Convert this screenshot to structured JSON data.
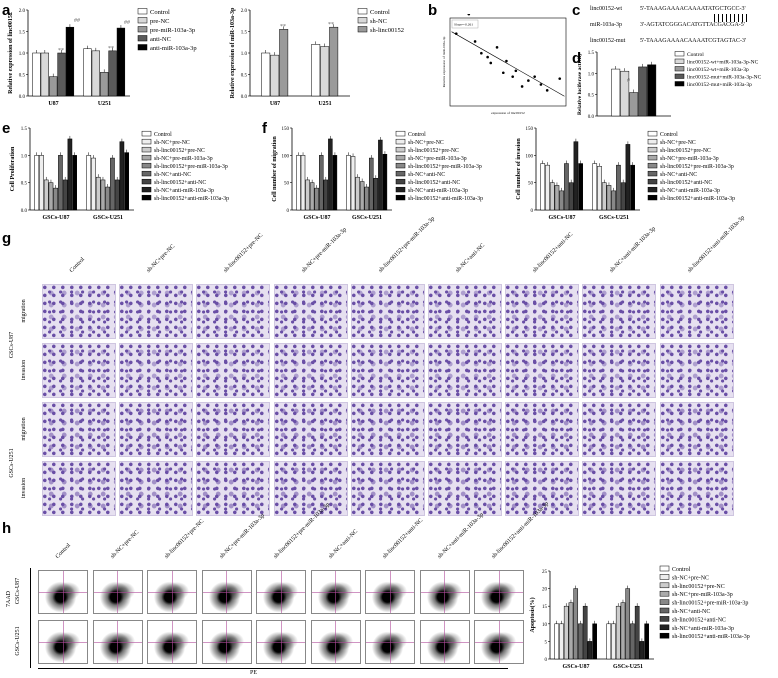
{
  "panels": {
    "a": "a",
    "b": "b",
    "c": "c",
    "d": "d",
    "e": "e",
    "f": "f",
    "g": "g",
    "h": "h"
  },
  "colors": {
    "white": "#ffffff",
    "lightgray": "#d9d9d9",
    "midgray": "#9a9a9a",
    "darkgray": "#5a5a5a",
    "black": "#000000",
    "stain": "#6a4fa6",
    "stain_bg": "#e6e0f0"
  },
  "chart_data": [
    {
      "id": "a1",
      "type": "bar",
      "ylabel": "Relative expression of linc00152",
      "categories": [
        "U87",
        "U251"
      ],
      "ylim": [
        0,
        2.0
      ],
      "yticks": [
        "0.0",
        "0.5",
        "1.0",
        "1.5",
        "2.0"
      ],
      "series": [
        {
          "name": "Control",
          "values": [
            1.0,
            1.1
          ]
        },
        {
          "name": "pre-NC",
          "values": [
            1.0,
            1.05
          ]
        },
        {
          "name": "pre-miR-103a-3p",
          "values": [
            0.45,
            0.55
          ]
        },
        {
          "name": "anti-NC",
          "values": [
            1.0,
            1.05
          ]
        },
        {
          "name": "anti-miR-103a-3p",
          "values": [
            1.6,
            1.58
          ]
        }
      ],
      "annotations": [
        "**",
        "##",
        "**",
        "##"
      ]
    },
    {
      "id": "a2",
      "type": "bar",
      "ylabel": "Relative expression of miR-103a-3p",
      "categories": [
        "U87",
        "U251"
      ],
      "ylim": [
        0,
        2.0
      ],
      "yticks": [
        "0.0",
        "0.5",
        "1.0",
        "1.5",
        "2.0"
      ],
      "series": [
        {
          "name": "Control",
          "values": [
            1.0,
            1.2
          ]
        },
        {
          "name": "sh-NC",
          "values": [
            0.95,
            1.15
          ]
        },
        {
          "name": "sh-linc00152",
          "values": [
            1.55,
            1.6
          ]
        }
      ],
      "annotations": [
        "**",
        "**"
      ]
    },
    {
      "id": "b",
      "type": "scatter",
      "xlabel": "expression of linc00152",
      "ylabel": "Relative expression of miR-103a-3p",
      "legend_text": "Slope=-0.261",
      "x": [
        0.5,
        0.9,
        1.1,
        1.3,
        1.5,
        1.6,
        1.8,
        2.0,
        2.1,
        2.3,
        2.4,
        2.6,
        2.8,
        3.0,
        3.2,
        3.4,
        3.8
      ],
      "y": [
        0.42,
        0.52,
        0.38,
        0.32,
        0.3,
        0.27,
        0.35,
        0.22,
        0.28,
        0.2,
        0.23,
        0.15,
        0.18,
        0.2,
        0.16,
        0.13,
        0.19
      ]
    },
    {
      "id": "d",
      "type": "bar",
      "ylabel": "Relative luciferase activity",
      "ylim": [
        0,
        1.5
      ],
      "yticks": [
        "0.0",
        "0.5",
        "1.0",
        "1.5"
      ],
      "series": [
        {
          "name": "Control",
          "values": [
            1.1
          ]
        },
        {
          "name": "linc00152-wt+miR-103a-3p-NC",
          "values": [
            1.05
          ]
        },
        {
          "name": "linc00152-wt+miR-103a-3p",
          "values": [
            0.55
          ]
        },
        {
          "name": "linc00152-mut+miR-103a-3p-NC",
          "values": [
            1.15
          ]
        },
        {
          "name": "linc00152-mut+miR-103a-3p",
          "values": [
            1.2
          ]
        }
      ],
      "annotations": [
        "#"
      ]
    },
    {
      "id": "e",
      "type": "bar",
      "ylabel": "Cell Proliferation",
      "categories": [
        "GSCs-U87",
        "GSCs-U251"
      ],
      "ylim": [
        0,
        1.5
      ],
      "yticks": [
        "0.0",
        "0.5",
        "1.0",
        "1.5"
      ],
      "series": [
        {
          "name": "Control",
          "values": [
            1.0,
            1.0
          ]
        },
        {
          "name": "sh-NC+pre-NC",
          "values": [
            1.0,
            0.95
          ]
        },
        {
          "name": "sh-linc00152+pre-NC",
          "values": [
            0.55,
            0.6
          ]
        },
        {
          "name": "sh-NC+pre-miR-103a-3p",
          "values": [
            0.5,
            0.55
          ]
        },
        {
          "name": "sh-linc00152+pre-miR-103a-3p",
          "values": [
            0.4,
            0.42
          ]
        },
        {
          "name": "sh-NC+anti-NC",
          "values": [
            1.0,
            0.95
          ]
        },
        {
          "name": "sh-linc00152+anti-NC",
          "values": [
            0.55,
            0.55
          ]
        },
        {
          "name": "sh-NC+anti-miR-103a-3p",
          "values": [
            1.3,
            1.25
          ]
        },
        {
          "name": "sh-linc00152+anti-miR-103a-3p",
          "values": [
            1.0,
            1.05
          ]
        }
      ]
    },
    {
      "id": "f1",
      "type": "bar",
      "ylabel": "Cell number of migration",
      "categories": [
        "GSCs-U87",
        "GSCs-U251"
      ],
      "ylim": [
        0,
        150
      ],
      "yticks": [
        "0",
        "50",
        "100",
        "150"
      ],
      "series": [
        {
          "name": "Control",
          "values": [
            100,
            100
          ]
        },
        {
          "name": "sh-NC+pre-NC",
          "values": [
            100,
            98
          ]
        },
        {
          "name": "sh-linc00152+pre-NC",
          "values": [
            55,
            60
          ]
        },
        {
          "name": "sh-NC+pre-miR-103a-3p",
          "values": [
            50,
            52
          ]
        },
        {
          "name": "sh-linc00152+pre-miR-103a-3p",
          "values": [
            40,
            42
          ]
        },
        {
          "name": "sh-NC+anti-NC",
          "values": [
            100,
            95
          ]
        },
        {
          "name": "sh-linc00152+anti-NC",
          "values": [
            55,
            58
          ]
        },
        {
          "name": "sh-NC+anti-miR-103a-3p",
          "values": [
            130,
            128
          ]
        },
        {
          "name": "sh-linc00152+anti-miR-103a-3p",
          "values": [
            100,
            102
          ]
        }
      ]
    },
    {
      "id": "f2",
      "type": "bar",
      "ylabel": "Cell number of invasion",
      "categories": [
        "GSCs-U87",
        "GSCs-U251"
      ],
      "ylim": [
        0,
        150
      ],
      "yticks": [
        "0",
        "50",
        "100",
        "150"
      ],
      "series": [
        {
          "name": "Control",
          "values": [
            85,
            85
          ]
        },
        {
          "name": "sh-NC+pre-NC",
          "values": [
            82,
            80
          ]
        },
        {
          "name": "sh-linc00152+pre-NC",
          "values": [
            50,
            50
          ]
        },
        {
          "name": "sh-NC+pre-miR-103a-3p",
          "values": [
            45,
            45
          ]
        },
        {
          "name": "sh-linc00152+pre-miR-103a-3p",
          "values": [
            35,
            35
          ]
        },
        {
          "name": "sh-NC+anti-NC",
          "values": [
            85,
            82
          ]
        },
        {
          "name": "sh-linc00152+anti-NC",
          "values": [
            50,
            50
          ]
        },
        {
          "name": "sh-NC+anti-miR-103a-3p",
          "values": [
            125,
            120
          ]
        },
        {
          "name": "sh-linc00152+anti-miR-103a-3p",
          "values": [
            85,
            82
          ]
        }
      ]
    },
    {
      "id": "h",
      "type": "bar",
      "ylabel": "Apoptosis(%)",
      "categories": [
        "GSCs-U87",
        "GSCs-U251"
      ],
      "ylim": [
        0,
        25
      ],
      "yticks": [
        "0",
        "5",
        "10",
        "15",
        "20",
        "25"
      ],
      "series": [
        {
          "name": "Control",
          "values": [
            10,
            10
          ]
        },
        {
          "name": "sh-NC+pre-NC",
          "values": [
            10,
            10
          ]
        },
        {
          "name": "sh-linc00152+pre-NC",
          "values": [
            15,
            15
          ]
        },
        {
          "name": "sh-NC+pre-miR-103a-3p",
          "values": [
            16,
            16
          ]
        },
        {
          "name": "sh-linc00152+pre-miR-103a-3p",
          "values": [
            20,
            20
          ]
        },
        {
          "name": "sh-NC+anti-NC",
          "values": [
            10,
            10
          ]
        },
        {
          "name": "sh-linc00152+anti-NC",
          "values": [
            15,
            15
          ]
        },
        {
          "name": "sh-NC+anti-miR-103a-3p",
          "values": [
            5,
            5
          ]
        },
        {
          "name": "sh-linc00152+anti-miR-103a-3p",
          "values": [
            10,
            10
          ]
        }
      ]
    }
  ],
  "sequences": {
    "wt_label": "linc00152-wt",
    "wt_seq": "5'-TAAAGAAAACAAAATATGCTGCC-3'",
    "mir_label": "miR-103a-3p",
    "mir_seq": "3'-AGTATCGGGACATGTTACGACGA-5'",
    "mut_label": "linc00152-mut",
    "mut_seq": "5'-TAAAGAAAACAAAATCGTAGTAC-3'"
  },
  "panel_g": {
    "columns": [
      "Control",
      "sh-NC+pre-NC",
      "sh-linc00152+pre-NC",
      "sh-NC+pre-miR-103a-3p",
      "sh-linc00152+pre-miR-103a-3p",
      "sh-NC+anti-NC",
      "sh-linc00152+anti-NC",
      "sh-NC+anti-miR-103a-3p",
      "sh-linc00152+anti-miR-103a-3p"
    ],
    "rows": [
      "migration",
      "invasion",
      "migration",
      "invasion"
    ],
    "groups": [
      "GSCs-U87",
      "GSCs-U251"
    ]
  },
  "panel_h": {
    "columns": [
      "Control",
      "sh-NC+pre-NC",
      "sh-linc00152+pre-NC",
      "sh-NC+pre-miR-103a-3p",
      "sh-linc00152+pre-miR-103a-3p",
      "sh-NC+anti-NC",
      "sh-linc00152+anti-NC",
      "sh-NC+anti-miR-103a-3p",
      "sh-linc00152+anti-miR-103a-3p"
    ],
    "groups": [
      "GSCs-U87",
      "GSCs-U251"
    ],
    "y_axis": "7AAD",
    "x_axis": "PE"
  }
}
